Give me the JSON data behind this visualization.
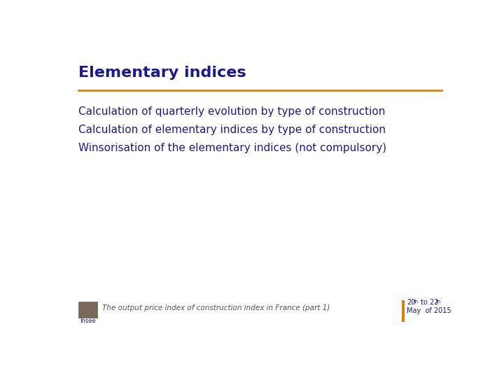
{
  "title": "Elementary indices",
  "title_color": "#1A1A8C",
  "title_fontsize": 16,
  "separator_color": "#D4820A",
  "separator_linewidth": 2.0,
  "bullet_lines": [
    "Calculation of quarterly evolution by type of construction",
    "Calculation of elementary indices by type of construction",
    "Winsorisation of the elementary indices (not compulsory)"
  ],
  "bullet_color": "#1A1A8C",
  "bullet_fontsize": 11,
  "footer_text": "The output price index of construction index in France (part 1)",
  "footer_color": "#555555",
  "footer_fontsize": 7.5,
  "date_color": "#1A1A8C",
  "date_fontsize": 7,
  "orange_bar_color": "#D4820A",
  "background_color": "#FFFFFF"
}
